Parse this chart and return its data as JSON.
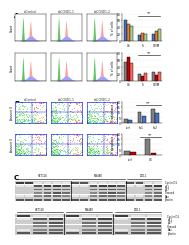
{
  "background": "#f0f0f0",
  "panel_a": {
    "flow_rows": 2,
    "flow_cols": 3,
    "bar_top": {
      "groups": [
        "G1",
        "S",
        "G2/M"
      ],
      "series": [
        {
          "values": [
            62,
            18,
            20
          ],
          "color": "#4472C4"
        },
        {
          "values": [
            50,
            22,
            28
          ],
          "color": "#ED7D31"
        },
        {
          "values": [
            45,
            20,
            35
          ],
          "color": "#A9D18E"
        }
      ],
      "ylim": [
        0,
        80
      ],
      "yticks": [
        0,
        20,
        40,
        60,
        80
      ]
    },
    "bar_bot": {
      "groups": [
        "G1",
        "S",
        "G2/M"
      ],
      "series": [
        {
          "values": [
            55,
            20,
            25
          ],
          "color": "#808080"
        },
        {
          "values": [
            68,
            14,
            18
          ],
          "color": "#C00000"
        },
        {
          "values": [
            52,
            22,
            26
          ],
          "color": "#FF6666"
        }
      ],
      "ylim": [
        0,
        80
      ],
      "yticks": [
        0,
        20,
        40,
        60,
        80
      ]
    }
  },
  "panel_b": {
    "scatter_rows": 2,
    "scatter_cols": 3,
    "bar_top": {
      "groups": [
        "ctrl",
        "sh1",
        "sh2"
      ],
      "series": [
        {
          "values": [
            4,
            10,
            13
          ],
          "color": "#808080"
        },
        {
          "values": [
            3,
            7,
            9
          ],
          "color": "#4472C4"
        }
      ],
      "ylim": [
        0,
        20
      ],
      "yticks": [
        0,
        5,
        10,
        15,
        20
      ]
    },
    "bar_bot": {
      "groups": [
        "ctrl",
        "OE"
      ],
      "series": [
        {
          "values": [
            4,
            15
          ],
          "color": "#808080"
        },
        {
          "values": [
            3,
            2
          ],
          "color": "#C00000"
        }
      ],
      "ylim": [
        0,
        20
      ],
      "yticks": [
        0,
        5,
        10,
        15,
        20
      ]
    }
  },
  "wb_bg": "#d8d8d8",
  "wb_band_dark": "#222222",
  "wb_band_med": "#888888",
  "wb_band_light": "#bbbbbb"
}
